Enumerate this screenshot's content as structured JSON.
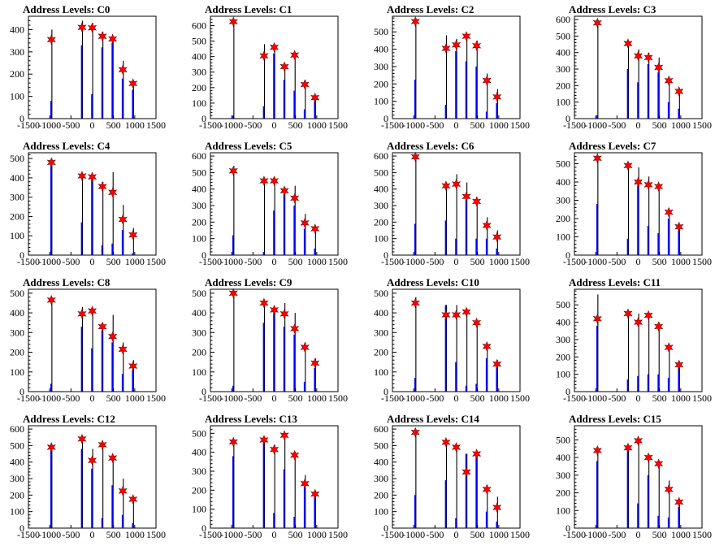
{
  "chart_data": [
    {
      "type": "bar",
      "title": "Address Levels: C0",
      "xlim": [
        -1500,
        1500
      ],
      "ylim": [
        0,
        460
      ],
      "yticks": [
        0,
        100,
        200,
        300,
        400
      ],
      "xtick_labels": [
        "-1500",
        "-1000",
        "-500",
        "0",
        "500",
        "1000",
        "1500"
      ],
      "x": [
        -960,
        -240,
        0,
        240,
        480,
        720,
        960
      ],
      "marker_values": [
        355,
        410,
        408,
        370,
        358,
        220,
        158
      ],
      "bar_peaks": [
        400,
        440,
        430,
        390,
        360,
        260,
        170
      ],
      "blue_values": [
        80,
        330,
        110,
        320,
        340,
        180,
        130
      ]
    },
    {
      "type": "bar",
      "title": "Address Levels: C1",
      "xlim": [
        -1500,
        1500
      ],
      "ylim": [
        0,
        660
      ],
      "yticks": [
        0,
        100,
        200,
        300,
        400,
        500,
        600
      ],
      "xtick_labels": [
        "-1500",
        "-1000",
        "-500",
        "0",
        "500",
        "1000",
        "1500"
      ],
      "x": [
        -960,
        -240,
        0,
        240,
        480,
        720,
        960
      ],
      "marker_values": [
        625,
        405,
        460,
        335,
        410,
        220,
        135
      ],
      "bar_peaks": [
        640,
        480,
        480,
        360,
        420,
        250,
        150
      ],
      "blue_values": [
        20,
        80,
        420,
        250,
        180,
        60,
        120
      ]
    },
    {
      "type": "bar",
      "title": "Address Levels: C2",
      "xlim": [
        -1500,
        1500
      ],
      "ylim": [
        0,
        590
      ],
      "yticks": [
        0,
        100,
        200,
        300,
        400,
        500
      ],
      "xtick_labels": [
        "-1500",
        "-1000",
        "-500",
        "0",
        "500",
        "1000",
        "1500"
      ],
      "x": [
        -960,
        -240,
        0,
        240,
        480,
        720,
        960
      ],
      "marker_values": [
        560,
        405,
        425,
        475,
        420,
        220,
        125
      ],
      "bar_peaks": [
        580,
        480,
        460,
        490,
        450,
        260,
        170
      ],
      "blue_values": [
        225,
        80,
        390,
        330,
        300,
        40,
        90
      ]
    },
    {
      "type": "bar",
      "title": "Address Levels: C3",
      "xlim": [
        -1500,
        1500
      ],
      "ylim": [
        0,
        620
      ],
      "yticks": [
        0,
        100,
        200,
        300,
        400,
        500,
        600
      ],
      "xtick_labels": [
        "-1500",
        "-1000",
        "-500",
        "0",
        "500",
        "1000",
        "1500"
      ],
      "x": [
        -960,
        -240,
        0,
        240,
        480,
        720,
        960
      ],
      "marker_values": [
        580,
        455,
        380,
        370,
        310,
        230,
        165
      ],
      "bar_peaks": [
        600,
        470,
        420,
        400,
        370,
        250,
        180
      ],
      "blue_values": [
        20,
        300,
        220,
        330,
        280,
        100,
        60
      ]
    },
    {
      "type": "bar",
      "title": "Address Levels: C4",
      "xlim": [
        -1500,
        1500
      ],
      "ylim": [
        0,
        530
      ],
      "yticks": [
        0,
        100,
        200,
        300,
        400,
        500
      ],
      "xtick_labels": [
        "-1500",
        "-1000",
        "-500",
        "0",
        "500",
        "1000",
        "1500"
      ],
      "x": [
        -960,
        -240,
        0,
        240,
        480,
        720,
        960
      ],
      "marker_values": [
        480,
        410,
        405,
        355,
        325,
        185,
        105
      ],
      "bar_peaks": [
        500,
        420,
        420,
        380,
        430,
        260,
        140
      ],
      "blue_values": [
        490,
        170,
        390,
        50,
        60,
        130,
        10
      ]
    },
    {
      "type": "bar",
      "title": "Address Levels: C5",
      "xlim": [
        -1500,
        1500
      ],
      "ylim": [
        0,
        620
      ],
      "yticks": [
        0,
        100,
        200,
        300,
        400,
        500,
        600
      ],
      "xtick_labels": [
        "-1500",
        "-1000",
        "-500",
        "0",
        "500",
        "1000",
        "1500"
      ],
      "x": [
        -960,
        -240,
        0,
        240,
        480,
        720,
        960
      ],
      "marker_values": [
        510,
        450,
        450,
        390,
        345,
        195,
        160
      ],
      "bar_peaks": [
        540,
        460,
        470,
        410,
        420,
        250,
        180
      ],
      "blue_values": [
        120,
        20,
        270,
        370,
        300,
        160,
        40
      ]
    },
    {
      "type": "bar",
      "title": "Address Levels: C6",
      "xlim": [
        -1500,
        1500
      ],
      "ylim": [
        0,
        620
      ],
      "yticks": [
        0,
        100,
        200,
        300,
        400,
        500,
        600
      ],
      "xtick_labels": [
        "-1500",
        "-1000",
        "-500",
        "0",
        "500",
        "1000",
        "1500"
      ],
      "x": [
        -960,
        -240,
        0,
        240,
        480,
        720,
        960
      ],
      "marker_values": [
        595,
        420,
        430,
        355,
        325,
        180,
        110
      ],
      "bar_peaks": [
        610,
        440,
        490,
        440,
        350,
        230,
        150
      ],
      "blue_values": [
        190,
        210,
        100,
        340,
        100,
        100,
        40
      ]
    },
    {
      "type": "bar",
      "title": "Address Levels: C7",
      "xlim": [
        -1500,
        1500
      ],
      "ylim": [
        0,
        560
      ],
      "yticks": [
        0,
        100,
        200,
        300,
        400,
        500
      ],
      "xtick_labels": [
        "-1500",
        "-1000",
        "-500",
        "0",
        "500",
        "1000",
        "1500"
      ],
      "x": [
        -960,
        -240,
        0,
        240,
        480,
        720,
        960
      ],
      "marker_values": [
        530,
        490,
        400,
        385,
        375,
        235,
        155
      ],
      "bar_peaks": [
        540,
        500,
        480,
        430,
        380,
        250,
        170
      ],
      "blue_values": [
        280,
        90,
        380,
        160,
        120,
        200,
        140
      ]
    },
    {
      "type": "bar",
      "title": "Address Levels: C8",
      "xlim": [
        -1500,
        1500
      ],
      "ylim": [
        0,
        520
      ],
      "yticks": [
        0,
        100,
        200,
        300,
        400,
        500
      ],
      "xtick_labels": [
        "-1500",
        "-1000",
        "-500",
        "0",
        "500",
        "1000",
        "1500"
      ],
      "x": [
        -960,
        -240,
        0,
        240,
        480,
        720,
        960
      ],
      "marker_values": [
        465,
        395,
        410,
        330,
        280,
        215,
        130
      ],
      "bar_peaks": [
        480,
        430,
        420,
        350,
        390,
        250,
        160
      ],
      "blue_values": [
        40,
        330,
        220,
        310,
        250,
        90,
        110
      ]
    },
    {
      "type": "bar",
      "title": "Address Levels: C9",
      "xlim": [
        -1500,
        1500
      ],
      "ylim": [
        0,
        520
      ],
      "yticks": [
        0,
        100,
        200,
        300,
        400,
        500
      ],
      "xtick_labels": [
        "-1500",
        "-1000",
        "-500",
        "0",
        "500",
        "1000",
        "1500"
      ],
      "x": [
        -960,
        -240,
        0,
        240,
        480,
        720,
        960
      ],
      "marker_values": [
        500,
        450,
        415,
        395,
        320,
        225,
        145
      ],
      "bar_peaks": [
        510,
        450,
        430,
        450,
        400,
        250,
        170
      ],
      "blue_values": [
        30,
        350,
        400,
        330,
        290,
        50,
        120
      ]
    },
    {
      "type": "bar",
      "title": "Address Levels: C10",
      "xlim": [
        -1500,
        1500
      ],
      "ylim": [
        0,
        520
      ],
      "yticks": [
        0,
        100,
        200,
        300,
        400,
        500
      ],
      "xtick_labels": [
        "-1500",
        "-1000",
        "-500",
        "0",
        "500",
        "1000",
        "1500"
      ],
      "x": [
        -960,
        -240,
        0,
        240,
        480,
        720,
        960
      ],
      "marker_values": [
        450,
        390,
        390,
        405,
        350,
        230,
        140
      ],
      "bar_peaks": [
        480,
        440,
        440,
        420,
        360,
        240,
        160
      ],
      "blue_values": [
        70,
        440,
        150,
        30,
        40,
        170,
        140
      ]
    },
    {
      "type": "bar",
      "title": "Address Levels: C11",
      "xlim": [
        -1500,
        1500
      ],
      "ylim": [
        0,
        590
      ],
      "yticks": [
        0,
        100,
        200,
        300,
        400,
        500
      ],
      "xtick_labels": [
        "-1500",
        "-1000",
        "-500",
        "0",
        "500",
        "1000",
        "1500"
      ],
      "x": [
        -960,
        -240,
        0,
        240,
        480,
        720,
        960
      ],
      "marker_values": [
        420,
        450,
        400,
        440,
        375,
        255,
        155
      ],
      "bar_peaks": [
        560,
        460,
        450,
        450,
        400,
        270,
        170
      ],
      "blue_values": [
        380,
        70,
        90,
        100,
        100,
        80,
        140
      ]
    },
    {
      "type": "bar",
      "title": "Address Levels: C12",
      "xlim": [
        -1500,
        1500
      ],
      "ylim": [
        0,
        620
      ],
      "yticks": [
        0,
        100,
        200,
        300,
        400,
        500,
        600
      ],
      "xtick_labels": [
        "-1500",
        "-1000",
        "-500",
        "0",
        "500",
        "1000",
        "1500"
      ],
      "x": [
        -960,
        -240,
        0,
        240,
        480,
        720,
        960
      ],
      "marker_values": [
        490,
        540,
        410,
        505,
        425,
        225,
        175
      ],
      "bar_peaks": [
        500,
        560,
        480,
        510,
        440,
        300,
        190
      ],
      "blue_values": [
        480,
        480,
        360,
        60,
        260,
        80,
        30
      ]
    },
    {
      "type": "bar",
      "title": "Address Levels: C13",
      "xlim": [
        -1500,
        1500
      ],
      "ylim": [
        0,
        540
      ],
      "yticks": [
        0,
        100,
        200,
        300,
        400,
        500
      ],
      "xtick_labels": [
        "-1500",
        "-1000",
        "-500",
        "0",
        "500",
        "1000",
        "1500"
      ],
      "x": [
        -960,
        -240,
        0,
        240,
        480,
        720,
        960
      ],
      "marker_values": [
        455,
        465,
        415,
        490,
        385,
        235,
        180
      ],
      "bar_peaks": [
        470,
        480,
        440,
        500,
        400,
        280,
        190
      ],
      "blue_values": [
        380,
        460,
        80,
        310,
        60,
        220,
        170
      ]
    },
    {
      "type": "bar",
      "title": "Address Levels: C14",
      "xlim": [
        -1500,
        1500
      ],
      "ylim": [
        0,
        620
      ],
      "yticks": [
        0,
        100,
        200,
        300,
        400,
        500,
        600
      ],
      "xtick_labels": [
        "-1500",
        "-1000",
        "-500",
        "0",
        "500",
        "1000",
        "1500"
      ],
      "x": [
        -960,
        -240,
        0,
        240,
        480,
        720,
        960
      ],
      "marker_values": [
        580,
        520,
        490,
        340,
        450,
        235,
        125
      ],
      "bar_peaks": [
        600,
        530,
        500,
        450,
        460,
        260,
        190
      ],
      "blue_values": [
        200,
        290,
        60,
        450,
        440,
        100,
        40
      ]
    },
    {
      "type": "bar",
      "title": "Address Levels: C15",
      "xlim": [
        -1500,
        1500
      ],
      "ylim": [
        0,
        580
      ],
      "yticks": [
        0,
        100,
        200,
        300,
        400,
        500
      ],
      "xtick_labels": [
        "-1500",
        "-1000",
        "-500",
        "0",
        "500",
        "1000",
        "1500"
      ],
      "x": [
        -960,
        -240,
        0,
        240,
        480,
        720,
        960
      ],
      "marker_values": [
        440,
        455,
        495,
        400,
        365,
        220,
        148
      ],
      "bar_peaks": [
        460,
        470,
        500,
        420,
        380,
        270,
        160
      ],
      "blue_values": [
        380,
        450,
        140,
        300,
        70,
        60,
        120
      ]
    }
  ],
  "colors": {
    "spike": "#000000",
    "blue": "#0000ff",
    "marker": "#ff0000",
    "marker_outline": "#800000"
  }
}
